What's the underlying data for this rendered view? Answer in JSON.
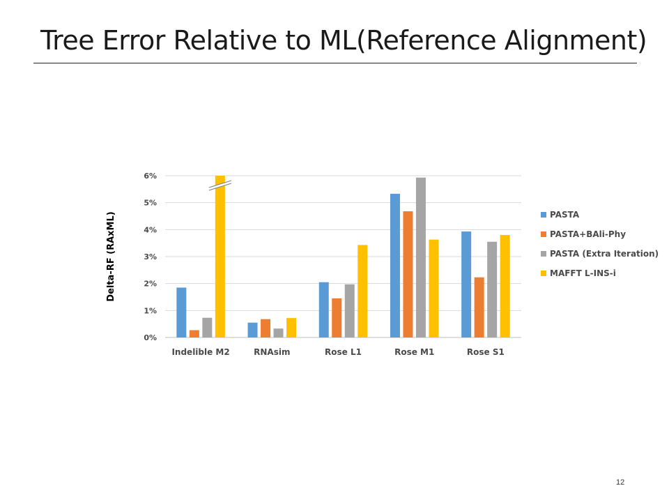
{
  "slide": {
    "title": "Tree Error Relative to ML(Reference Alignment)",
    "page_number": "12"
  },
  "chart_data": {
    "type": "bar",
    "title": "",
    "xlabel": "",
    "ylabel": "Delta-RF (RAxML)",
    "categories": [
      "Indelible M2",
      "RNAsim",
      "Rose L1",
      "Rose M1",
      "Rose S1"
    ],
    "series": [
      {
        "name": "PASTA",
        "color": "#5B9BD5",
        "values": [
          1.85,
          0.55,
          2.05,
          5.33,
          3.93
        ]
      },
      {
        "name": "PASTA+BAli-Phy",
        "color": "#ED7D31",
        "values": [
          0.27,
          0.68,
          1.45,
          4.68,
          2.23
        ]
      },
      {
        "name": "PASTA (Extra Iteration)",
        "color": "#A5A5A5",
        "values": [
          0.73,
          0.33,
          1.97,
          5.93,
          3.55
        ]
      },
      {
        "name": "MAFFT L-INS-i",
        "color": "#FFC000",
        "values": [
          6.0,
          0.72,
          3.43,
          3.63,
          3.8
        ]
      }
    ],
    "axis_break": {
      "series": "MAFFT L-INS-i",
      "category": "Indelible M2"
    },
    "yticks": [
      "0%",
      "1%",
      "2%",
      "3%",
      "4%",
      "5%",
      "6%"
    ],
    "ylim": [
      0,
      6
    ],
    "grid": true,
    "legend_position": "right"
  }
}
